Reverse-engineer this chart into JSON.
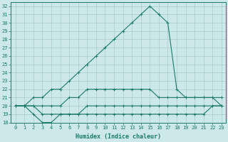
{
  "xlabel": "Humidex (Indice chaleur)",
  "background_color": "#cce8e8",
  "grid_color": "#aacccc",
  "line_color": "#1a7a6a",
  "xlim": [
    -0.5,
    23.5
  ],
  "ylim": [
    18,
    32.5
  ],
  "xticks": [
    0,
    1,
    2,
    3,
    4,
    5,
    6,
    7,
    8,
    9,
    10,
    11,
    12,
    13,
    14,
    15,
    16,
    17,
    18,
    19,
    20,
    21,
    22,
    23
  ],
  "yticks": [
    18,
    19,
    20,
    21,
    22,
    23,
    24,
    25,
    26,
    27,
    28,
    29,
    30,
    31,
    32
  ],
  "lines": [
    {
      "x": [
        0,
        1,
        2,
        3,
        4,
        5,
        6,
        7,
        8,
        9,
        10,
        11,
        12,
        13,
        14,
        15,
        16,
        17,
        18,
        19,
        20,
        21,
        22,
        23
      ],
      "y": [
        20,
        20,
        21,
        21,
        22,
        22,
        23,
        24,
        25,
        26,
        27,
        28,
        29,
        30,
        31,
        32,
        31,
        30,
        22,
        21,
        21,
        21,
        21,
        20
      ]
    },
    {
      "x": [
        0,
        1,
        2,
        3,
        4,
        5,
        6,
        7,
        8,
        9,
        10,
        11,
        12,
        13,
        14,
        15,
        16,
        17,
        18,
        19,
        20,
        21,
        22,
        23
      ],
      "y": [
        20,
        20,
        20,
        20,
        20,
        20,
        21,
        21,
        22,
        22,
        22,
        22,
        22,
        22,
        22,
        22,
        21,
        21,
        21,
        21,
        21,
        21,
        21,
        21
      ]
    },
    {
      "x": [
        0,
        1,
        2,
        3,
        4,
        5,
        6,
        7,
        8,
        9,
        10,
        11,
        12,
        13,
        14,
        15,
        16,
        17,
        18,
        19,
        20,
        21,
        22,
        23
      ],
      "y": [
        20,
        20,
        20,
        19,
        19,
        19,
        19,
        19,
        20,
        20,
        20,
        20,
        20,
        20,
        20,
        20,
        20,
        20,
        20,
        20,
        20,
        20,
        20,
        20
      ]
    },
    {
      "x": [
        0,
        1,
        2,
        3,
        4,
        5,
        6,
        7,
        8,
        9,
        10,
        11,
        12,
        13,
        14,
        15,
        16,
        17,
        18,
        19,
        20,
        21,
        22,
        23
      ],
      "y": [
        20,
        20,
        19,
        18,
        18,
        19,
        19,
        19,
        19,
        19,
        19,
        19,
        19,
        19,
        19,
        19,
        19,
        19,
        19,
        19,
        19,
        19,
        20,
        20
      ]
    }
  ]
}
